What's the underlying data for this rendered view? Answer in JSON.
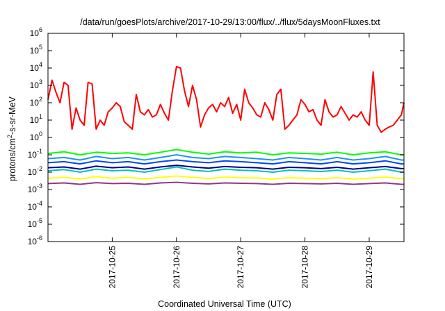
{
  "chart_data": {
    "type": "line",
    "title": "/data/run/goesPlots/archive/2017-10-29/13:00/flux/../flux/5daysMoonFluxes.txt",
    "xlabel": "Coordinated Universal Time (UTC)",
    "ylabel": {
      "prefix": "protons/cm",
      "sup": "2",
      "suffix": "-s-sr-MeV"
    },
    "yscale": "log",
    "ylim": [
      1e-06,
      1000000.0
    ],
    "xlim": [
      "2017-10-24T00:00",
      "2017-10-29T13:00"
    ],
    "x_ticks": [
      "2017-10-25",
      "2017-10-26",
      "2017-10-27",
      "2017-10-28",
      "2017-10-29"
    ],
    "y_ticks": [
      {
        "value": 1e-06,
        "base": "10",
        "exp": "-6"
      },
      {
        "value": 1e-05,
        "base": "10",
        "exp": "-5"
      },
      {
        "value": 0.0001,
        "base": "10",
        "exp": "-4"
      },
      {
        "value": 0.001,
        "base": "10",
        "exp": "-3"
      },
      {
        "value": 0.01,
        "base": "10",
        "exp": "-2"
      },
      {
        "value": 0.1,
        "base": "10",
        "exp": "-1"
      },
      {
        "value": 1,
        "base": "10",
        "exp": "0"
      },
      {
        "value": 10.0,
        "base": "10",
        "exp": "1"
      },
      {
        "value": 100.0,
        "base": "10",
        "exp": "2"
      },
      {
        "value": 1000.0,
        "base": "10",
        "exp": "3"
      },
      {
        "value": 10000.0,
        "base": "10",
        "exp": "4"
      },
      {
        "value": 100000.0,
        "base": "10",
        "exp": "5"
      },
      {
        "value": 1000000.0,
        "base": "10",
        "exp": "6"
      }
    ],
    "grid": false,
    "legend": "none",
    "series": [
      {
        "color": "#ff0000",
        "x": [
          "2017-10-24T00:00",
          "2017-10-24T01:30",
          "2017-10-24T03:00",
          "2017-10-24T04:30",
          "2017-10-24T06:00",
          "2017-10-24T07:30",
          "2017-10-24T09:00",
          "2017-10-24T10:30",
          "2017-10-24T12:00",
          "2017-10-24T13:30",
          "2017-10-24T15:00",
          "2017-10-24T16:30",
          "2017-10-24T18:00",
          "2017-10-24T19:30",
          "2017-10-24T21:00",
          "2017-10-24T22:30",
          "2017-10-25T00:00",
          "2017-10-25T01:30",
          "2017-10-25T03:00",
          "2017-10-25T04:30",
          "2017-10-25T06:00",
          "2017-10-25T07:30",
          "2017-10-25T09:00",
          "2017-10-25T10:30",
          "2017-10-25T12:00",
          "2017-10-25T13:30",
          "2017-10-25T15:00",
          "2017-10-25T16:30",
          "2017-10-25T18:00",
          "2017-10-25T19:30",
          "2017-10-25T21:00",
          "2017-10-25T22:30",
          "2017-10-26T00:00",
          "2017-10-26T01:30",
          "2017-10-26T03:00",
          "2017-10-26T04:30",
          "2017-10-26T06:00",
          "2017-10-26T07:30",
          "2017-10-26T09:00",
          "2017-10-26T10:30",
          "2017-10-26T12:00",
          "2017-10-26T13:30",
          "2017-10-26T15:00",
          "2017-10-26T16:30",
          "2017-10-26T18:00",
          "2017-10-26T19:30",
          "2017-10-26T21:00",
          "2017-10-26T22:30",
          "2017-10-27T00:00",
          "2017-10-27T01:30",
          "2017-10-27T03:00",
          "2017-10-27T04:30",
          "2017-10-27T06:00",
          "2017-10-27T07:30",
          "2017-10-27T09:00",
          "2017-10-27T10:30",
          "2017-10-27T12:00",
          "2017-10-27T13:30",
          "2017-10-27T15:00",
          "2017-10-27T16:30",
          "2017-10-27T18:00",
          "2017-10-27T19:30",
          "2017-10-27T21:00",
          "2017-10-27T22:30",
          "2017-10-28T00:00",
          "2017-10-28T01:30",
          "2017-10-28T03:00",
          "2017-10-28T04:30",
          "2017-10-28T06:00",
          "2017-10-28T07:30",
          "2017-10-28T09:00",
          "2017-10-28T10:30",
          "2017-10-28T12:00",
          "2017-10-28T13:30",
          "2017-10-28T15:00",
          "2017-10-28T16:30",
          "2017-10-28T18:00",
          "2017-10-28T19:30",
          "2017-10-28T21:00",
          "2017-10-28T22:30",
          "2017-10-29T00:00",
          "2017-10-29T01:30",
          "2017-10-29T03:00",
          "2017-10-29T04:30",
          "2017-10-29T06:00",
          "2017-10-29T07:30",
          "2017-10-29T09:00",
          "2017-10-29T10:30",
          "2017-10-29T12:00",
          "2017-10-29T13:00"
        ],
        "y": [
          150,
          2000,
          400,
          100,
          1500,
          1000,
          3,
          50,
          10,
          5,
          1500,
          1200,
          3,
          10,
          5,
          30,
          50,
          100,
          60,
          8,
          5,
          3,
          300,
          30,
          20,
          40,
          15,
          20,
          80,
          25,
          10,
          500,
          12000,
          10000,
          500,
          60,
          1000,
          150,
          4,
          20,
          50,
          80,
          30,
          100,
          60,
          200,
          25,
          80,
          10,
          600,
          100,
          50,
          20,
          15,
          100,
          40,
          10,
          300,
          600,
          3,
          5,
          10,
          20,
          150,
          80,
          30,
          40,
          10,
          5,
          150,
          30,
          15,
          20,
          60,
          25,
          10,
          20,
          15,
          30,
          10,
          5,
          6000,
          5,
          2,
          3,
          4,
          5,
          10,
          20,
          100
        ]
      },
      {
        "color": "#00ff00",
        "x": [
          "2017-10-24T00:00",
          "2017-10-24T06:00",
          "2017-10-24T12:00",
          "2017-10-24T18:00",
          "2017-10-25T00:00",
          "2017-10-25T06:00",
          "2017-10-25T12:00",
          "2017-10-25T18:00",
          "2017-10-26T00:00",
          "2017-10-26T06:00",
          "2017-10-26T12:00",
          "2017-10-26T18:00",
          "2017-10-27T00:00",
          "2017-10-27T06:00",
          "2017-10-27T12:00",
          "2017-10-27T18:00",
          "2017-10-28T00:00",
          "2017-10-28T06:00",
          "2017-10-28T12:00",
          "2017-10-28T18:00",
          "2017-10-29T00:00",
          "2017-10-29T06:00",
          "2017-10-29T12:00",
          "2017-10-29T13:00"
        ],
        "y": [
          0.12,
          0.15,
          0.1,
          0.14,
          0.12,
          0.13,
          0.1,
          0.14,
          0.2,
          0.14,
          0.11,
          0.15,
          0.13,
          0.14,
          0.1,
          0.13,
          0.12,
          0.11,
          0.14,
          0.1,
          0.13,
          0.15,
          0.1,
          0.1
        ]
      },
      {
        "color": "#1e90ff",
        "x": [
          "2017-10-24T00:00",
          "2017-10-24T06:00",
          "2017-10-24T12:00",
          "2017-10-24T18:00",
          "2017-10-25T00:00",
          "2017-10-25T06:00",
          "2017-10-25T12:00",
          "2017-10-25T18:00",
          "2017-10-26T00:00",
          "2017-10-26T06:00",
          "2017-10-26T12:00",
          "2017-10-26T18:00",
          "2017-10-27T00:00",
          "2017-10-27T06:00",
          "2017-10-27T12:00",
          "2017-10-27T18:00",
          "2017-10-28T00:00",
          "2017-10-28T06:00",
          "2017-10-28T12:00",
          "2017-10-28T18:00",
          "2017-10-29T00:00",
          "2017-10-29T06:00",
          "2017-10-29T12:00",
          "2017-10-29T13:00"
        ],
        "y": [
          0.06,
          0.07,
          0.05,
          0.08,
          0.06,
          0.07,
          0.05,
          0.07,
          0.1,
          0.07,
          0.06,
          0.08,
          0.07,
          0.06,
          0.05,
          0.07,
          0.06,
          0.05,
          0.07,
          0.05,
          0.06,
          0.08,
          0.05,
          0.05
        ]
      },
      {
        "color": "#0044ff",
        "x": [
          "2017-10-24T00:00",
          "2017-10-24T06:00",
          "2017-10-24T12:00",
          "2017-10-24T18:00",
          "2017-10-25T00:00",
          "2017-10-25T06:00",
          "2017-10-25T12:00",
          "2017-10-25T18:00",
          "2017-10-26T00:00",
          "2017-10-26T06:00",
          "2017-10-26T12:00",
          "2017-10-26T18:00",
          "2017-10-27T00:00",
          "2017-10-27T06:00",
          "2017-10-27T12:00",
          "2017-10-27T18:00",
          "2017-10-28T00:00",
          "2017-10-28T06:00",
          "2017-10-28T12:00",
          "2017-10-28T18:00",
          "2017-10-29T00:00",
          "2017-10-29T06:00",
          "2017-10-29T12:00",
          "2017-10-29T13:00"
        ],
        "y": [
          0.035,
          0.04,
          0.03,
          0.045,
          0.035,
          0.04,
          0.03,
          0.04,
          0.05,
          0.04,
          0.035,
          0.045,
          0.04,
          0.035,
          0.03,
          0.04,
          0.035,
          0.03,
          0.04,
          0.03,
          0.035,
          0.045,
          0.03,
          0.03
        ]
      },
      {
        "color": "#00c0c0",
        "x": [
          "2017-10-24T00:00",
          "2017-10-24T06:00",
          "2017-10-24T12:00",
          "2017-10-24T18:00",
          "2017-10-25T00:00",
          "2017-10-25T06:00",
          "2017-10-25T12:00",
          "2017-10-25T18:00",
          "2017-10-26T00:00",
          "2017-10-26T06:00",
          "2017-10-26T12:00",
          "2017-10-26T18:00",
          "2017-10-27T00:00",
          "2017-10-27T06:00",
          "2017-10-27T12:00",
          "2017-10-27T18:00",
          "2017-10-28T00:00",
          "2017-10-28T06:00",
          "2017-10-28T12:00",
          "2017-10-28T18:00",
          "2017-10-29T00:00",
          "2017-10-29T06:00",
          "2017-10-29T12:00",
          "2017-10-29T13:00"
        ],
        "y": [
          0.012,
          0.014,
          0.01,
          0.015,
          0.012,
          0.013,
          0.01,
          0.014,
          0.02,
          0.013,
          0.011,
          0.015,
          0.013,
          0.012,
          0.01,
          0.013,
          0.012,
          0.011,
          0.013,
          0.01,
          0.012,
          0.015,
          0.01,
          0.01
        ]
      },
      {
        "color": "#00008b",
        "x": [
          "2017-10-24T00:00",
          "2017-10-24T06:00",
          "2017-10-24T12:00",
          "2017-10-24T18:00",
          "2017-10-25T00:00",
          "2017-10-25T06:00",
          "2017-10-25T12:00",
          "2017-10-25T18:00",
          "2017-10-26T00:00",
          "2017-10-26T06:00",
          "2017-10-26T12:00",
          "2017-10-26T18:00",
          "2017-10-27T00:00",
          "2017-10-27T06:00",
          "2017-10-27T12:00",
          "2017-10-27T18:00",
          "2017-10-28T00:00",
          "2017-10-28T06:00",
          "2017-10-28T12:00",
          "2017-10-28T18:00",
          "2017-10-29T00:00",
          "2017-10-29T06:00",
          "2017-10-29T12:00",
          "2017-10-29T13:00"
        ],
        "y": [
          0.018,
          0.02,
          0.015,
          0.022,
          0.018,
          0.02,
          0.015,
          0.02,
          0.025,
          0.02,
          0.017,
          0.021,
          0.019,
          0.018,
          0.015,
          0.019,
          0.018,
          0.016,
          0.019,
          0.015,
          0.018,
          0.021,
          0.016,
          0.016
        ]
      },
      {
        "color": "#ffff00",
        "x": [
          "2017-10-24T00:00",
          "2017-10-24T06:00",
          "2017-10-24T12:00",
          "2017-10-24T18:00",
          "2017-10-25T00:00",
          "2017-10-25T06:00",
          "2017-10-25T12:00",
          "2017-10-25T18:00",
          "2017-10-26T00:00",
          "2017-10-26T06:00",
          "2017-10-26T12:00",
          "2017-10-26T18:00",
          "2017-10-27T00:00",
          "2017-10-27T06:00",
          "2017-10-27T12:00",
          "2017-10-27T18:00",
          "2017-10-28T00:00",
          "2017-10-28T06:00",
          "2017-10-28T12:00",
          "2017-10-28T18:00",
          "2017-10-29T00:00",
          "2017-10-29T06:00",
          "2017-10-29T12:00",
          "2017-10-29T13:00"
        ],
        "y": [
          0.0045,
          0.005,
          0.004,
          0.0055,
          0.0045,
          0.005,
          0.004,
          0.005,
          0.006,
          0.005,
          0.0043,
          0.0052,
          0.0048,
          0.0046,
          0.004,
          0.0048,
          0.0045,
          0.0042,
          0.0048,
          0.004,
          0.0045,
          0.0052,
          0.0042,
          0.0042
        ]
      },
      {
        "color": "#8b3a8b",
        "x": [
          "2017-10-24T00:00",
          "2017-10-24T06:00",
          "2017-10-24T12:00",
          "2017-10-24T18:00",
          "2017-10-25T00:00",
          "2017-10-25T06:00",
          "2017-10-25T12:00",
          "2017-10-25T18:00",
          "2017-10-26T00:00",
          "2017-10-26T06:00",
          "2017-10-26T12:00",
          "2017-10-26T18:00",
          "2017-10-27T00:00",
          "2017-10-27T06:00",
          "2017-10-27T12:00",
          "2017-10-27T18:00",
          "2017-10-28T00:00",
          "2017-10-28T06:00",
          "2017-10-28T12:00",
          "2017-10-28T18:00",
          "2017-10-29T00:00",
          "2017-10-29T06:00",
          "2017-10-29T12:00",
          "2017-10-29T13:00"
        ],
        "y": [
          0.0022,
          0.0024,
          0.002,
          0.0025,
          0.0022,
          0.0023,
          0.002,
          0.0024,
          0.0026,
          0.0023,
          0.0021,
          0.0024,
          0.0023,
          0.0022,
          0.002,
          0.0023,
          0.0022,
          0.0021,
          0.0023,
          0.002,
          0.0022,
          0.0024,
          0.002,
          0.002
        ]
      }
    ]
  }
}
